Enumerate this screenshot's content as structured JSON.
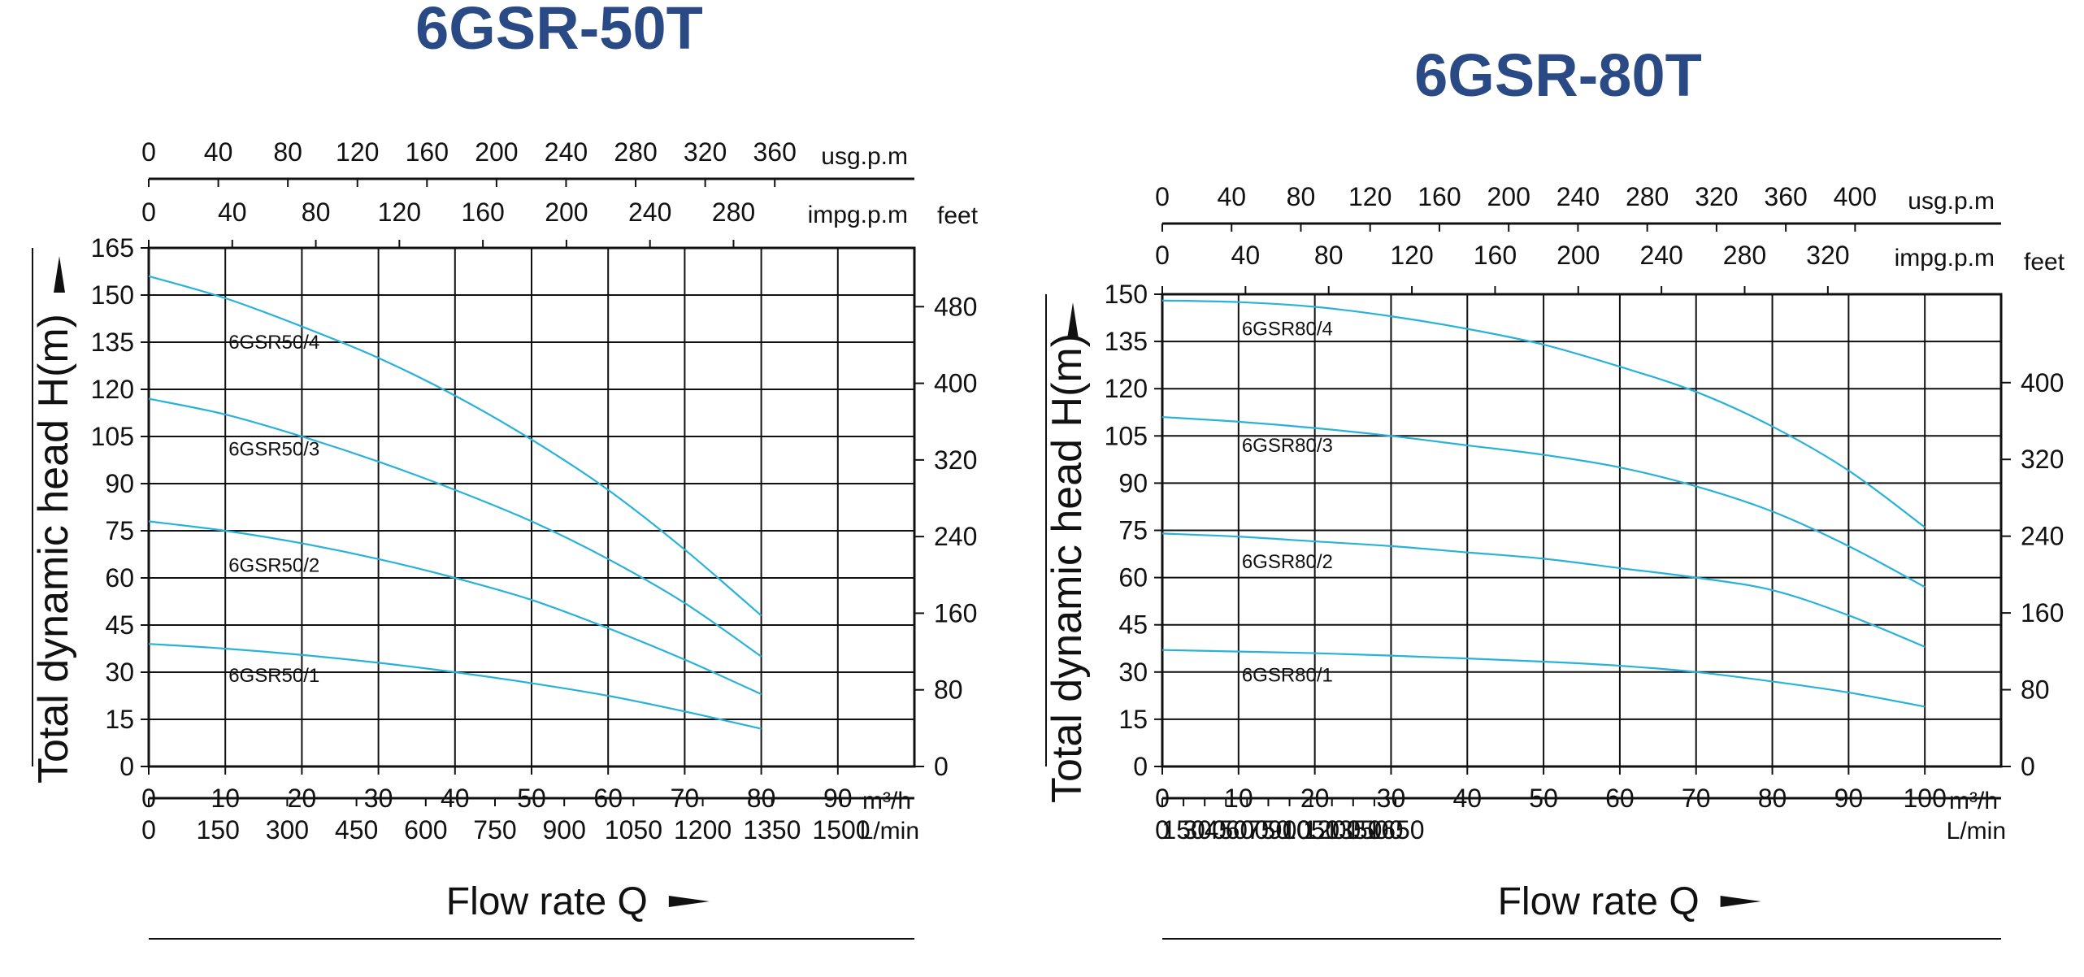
{
  "chart_data": [
    {
      "type": "line",
      "title": "6GSR-50T",
      "ylabel": "Total dynamic head H(m)",
      "xlabel": "Flow rate Q",
      "x_unit": "m³/h",
      "secondary_y_unit": "feet",
      "top_axis_1_unit": "usg.p.m",
      "top_axis_2_unit": "impg.p.m",
      "bottom_axis_2_unit": "L/min",
      "xlim": [
        0,
        100
      ],
      "ylim": [
        0,
        165
      ],
      "xticks": [
        "0",
        "10",
        "20",
        "30",
        "40",
        "50",
        "60",
        "70",
        "80",
        "90"
      ],
      "yticks": [
        "0",
        "15",
        "30",
        "45",
        "60",
        "75",
        "90",
        "105",
        "120",
        "135",
        "150",
        "165"
      ],
      "feet_ticks": [
        "0",
        "80",
        "160",
        "240",
        "320",
        "400",
        "480"
      ],
      "usgpm_ticks": [
        "0",
        "40",
        "80",
        "120",
        "160",
        "200",
        "240",
        "280",
        "320",
        "360"
      ],
      "impgpm_ticks": [
        "0",
        "40",
        "80",
        "120",
        "160",
        "200",
        "240",
        "280"
      ],
      "lmin_ticks": [
        "0",
        "150",
        "300",
        "450",
        "600",
        "750",
        "900",
        "1050",
        "1200",
        "1350",
        "1500"
      ],
      "series": [
        {
          "name": "6GSR50/4",
          "label_at": [
            10,
            135
          ],
          "x": [
            0,
            10,
            20,
            30,
            40,
            50,
            60,
            70,
            80
          ],
          "y": [
            156,
            149,
            140,
            130,
            118,
            104,
            88,
            69,
            48
          ]
        },
        {
          "name": "6GSR50/3",
          "label_at": [
            10,
            101
          ],
          "x": [
            0,
            10,
            20,
            30,
            40,
            50,
            60,
            70,
            80
          ],
          "y": [
            117,
            112,
            105,
            97,
            88,
            78,
            66,
            52,
            35
          ]
        },
        {
          "name": "6GSR50/2",
          "label_at": [
            10,
            64
          ],
          "x": [
            0,
            10,
            20,
            30,
            40,
            50,
            60,
            70,
            80
          ],
          "y": [
            78,
            75,
            71,
            66,
            60,
            53,
            44,
            34,
            23
          ]
        },
        {
          "name": "6GSR50/1",
          "label_at": [
            10,
            29
          ],
          "x": [
            0,
            10,
            20,
            30,
            40,
            50,
            60,
            70,
            80
          ],
          "y": [
            39,
            37.5,
            35.5,
            33,
            30,
            26.5,
            22.5,
            17.5,
            12
          ]
        }
      ]
    },
    {
      "type": "line",
      "title": "6GSR-80T",
      "ylabel": "Total dynamic head H(m)",
      "xlabel": "Flow rate Q",
      "x_unit": "m³/h",
      "secondary_y_unit": "feet",
      "top_axis_1_unit": "usg.p.m",
      "top_axis_2_unit": "impg.p.m",
      "bottom_axis_2_unit": "L/min",
      "xlim": [
        0,
        110
      ],
      "ylim": [
        0,
        150
      ],
      "xticks": [
        "0",
        "10",
        "20",
        "30",
        "40",
        "50",
        "60",
        "70",
        "80",
        "90",
        "100"
      ],
      "yticks": [
        "0",
        "15",
        "30",
        "45",
        "60",
        "75",
        "90",
        "105",
        "120",
        "135",
        "150"
      ],
      "feet_ticks": [
        "0",
        "80",
        "160",
        "240",
        "320",
        "400"
      ],
      "usgpm_ticks": [
        "0",
        "40",
        "80",
        "120",
        "160",
        "200",
        "240",
        "280",
        "320",
        "360",
        "400"
      ],
      "impgpm_ticks": [
        "0",
        "40",
        "80",
        "120",
        "160",
        "200",
        "240",
        "280",
        "320"
      ],
      "lmin_ticks": [
        "0",
        "150",
        "300",
        "450",
        "600",
        "750",
        "900",
        "1050",
        "1200",
        "1350",
        "1500",
        "1650"
      ],
      "series": [
        {
          "name": "6GSR80/4",
          "label_at": [
            10,
            139
          ],
          "x": [
            0,
            10,
            20,
            30,
            40,
            50,
            60,
            70,
            80,
            90,
            100
          ],
          "y": [
            148,
            147.5,
            146,
            143,
            139,
            134,
            127,
            119,
            108,
            94,
            76
          ]
        },
        {
          "name": "6GSR80/3",
          "label_at": [
            10,
            102
          ],
          "x": [
            0,
            10,
            20,
            30,
            40,
            50,
            60,
            70,
            80,
            90,
            100
          ],
          "y": [
            111,
            109.5,
            107.5,
            105,
            102,
            99,
            95,
            89,
            81,
            70,
            57
          ]
        },
        {
          "name": "6GSR80/2",
          "label_at": [
            10,
            65
          ],
          "x": [
            0,
            10,
            20,
            30,
            40,
            50,
            60,
            70,
            80,
            90,
            100
          ],
          "y": [
            74,
            73,
            71.5,
            70,
            68,
            66,
            63,
            60,
            56,
            48,
            38
          ]
        },
        {
          "name": "6GSR80/1",
          "label_at": [
            10,
            29
          ],
          "x": [
            0,
            10,
            20,
            30,
            40,
            50,
            60,
            70,
            80,
            90,
            100
          ],
          "y": [
            37,
            36.5,
            36,
            35.2,
            34.3,
            33.3,
            32,
            30,
            27,
            23.5,
            19
          ]
        }
      ]
    }
  ]
}
